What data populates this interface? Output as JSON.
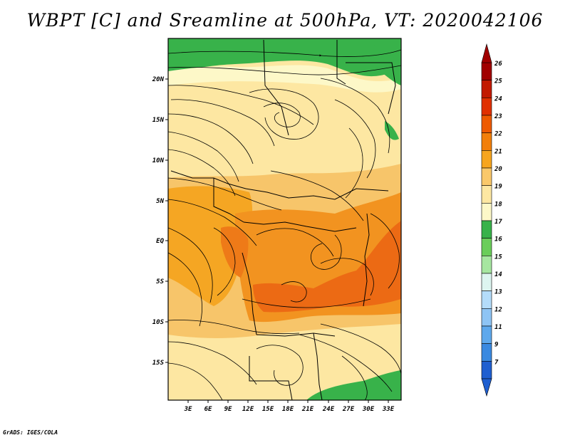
{
  "title": "WBPT [C] and Sreamline at 500hPa, VT: 2020042106",
  "footer": "GrADS: IGES/COLA",
  "map": {
    "lat_labels": [
      "20N",
      "15N",
      "10N",
      "5N",
      "EQ",
      "5S",
      "10S",
      "15S"
    ],
    "lon_labels": [
      "3E",
      "6E",
      "9E",
      "12E",
      "15E",
      "18E",
      "21E",
      "24E",
      "27E",
      "30E",
      "33E"
    ]
  },
  "colorbar": {
    "labels": [
      "26",
      "25",
      "24",
      "23",
      "22",
      "21",
      "20",
      "19",
      "18",
      "17",
      "16",
      "15",
      "14",
      "13",
      "12",
      "11",
      "9",
      "7"
    ],
    "colors": [
      "#a10000",
      "#c21a00",
      "#e03000",
      "#ee5a00",
      "#f27f0a",
      "#f7a51e",
      "#fac86a",
      "#fde7a2",
      "#fdf8c8",
      "#38b24a",
      "#6acd5a",
      "#a6e6a0",
      "#ddf5f0",
      "#b4dcfa",
      "#8ec4f4",
      "#5ea8ec",
      "#3a89e0",
      "#1f5fd0"
    ]
  }
}
